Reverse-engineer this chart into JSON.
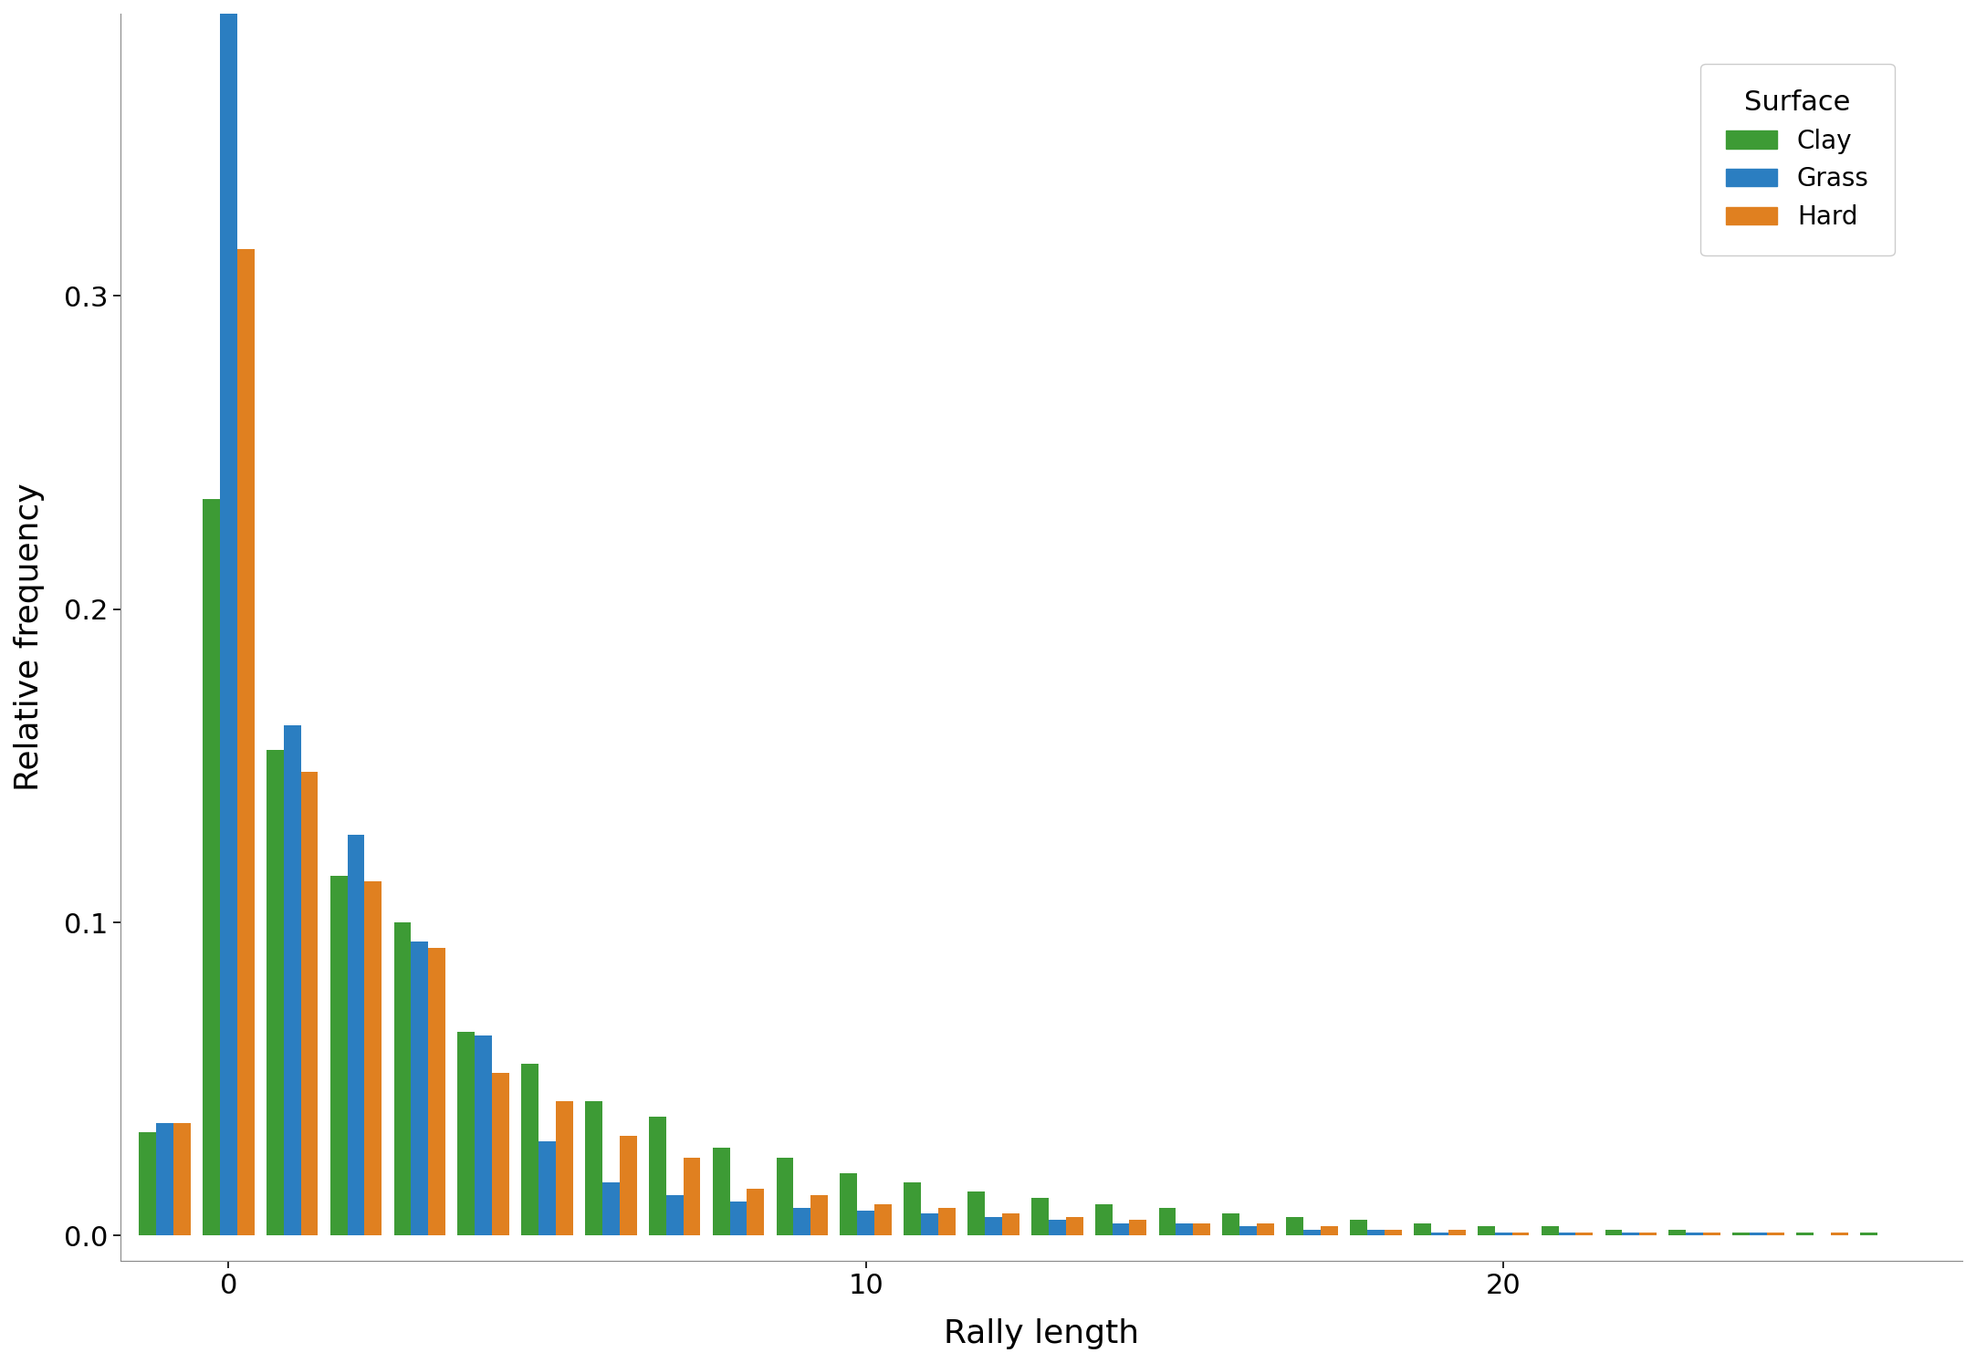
{
  "surfaces": [
    "Clay",
    "Grass",
    "Hard"
  ],
  "colors": {
    "Clay": "#3d9b35",
    "Grass": "#2b7ec1",
    "Hard": "#e08020"
  },
  "positions": [
    -1,
    0,
    1,
    2,
    3,
    4,
    5,
    6,
    7,
    8,
    9,
    10,
    11,
    12,
    13,
    14,
    15,
    16,
    17,
    18,
    19,
    20,
    21,
    22,
    23,
    24,
    25,
    26
  ],
  "clay": [
    0.033,
    0.235,
    0.155,
    0.115,
    0.1,
    0.065,
    0.055,
    0.043,
    0.038,
    0.028,
    0.025,
    0.02,
    0.017,
    0.014,
    0.012,
    0.01,
    0.009,
    0.007,
    0.006,
    0.005,
    0.004,
    0.003,
    0.003,
    0.002,
    0.002,
    0.001,
    0.001,
    0.001
  ],
  "grass": [
    0.036,
    0.42,
    0.163,
    0.128,
    0.094,
    0.064,
    0.03,
    0.017,
    0.013,
    0.011,
    0.009,
    0.008,
    0.007,
    0.006,
    0.005,
    0.004,
    0.004,
    0.003,
    0.002,
    0.002,
    0.001,
    0.001,
    0.001,
    0.001,
    0.001,
    0.001,
    0.0,
    0.0
  ],
  "hard": [
    0.036,
    0.315,
    0.148,
    0.113,
    0.092,
    0.052,
    0.043,
    0.032,
    0.025,
    0.015,
    0.013,
    0.01,
    0.009,
    0.007,
    0.006,
    0.005,
    0.004,
    0.004,
    0.003,
    0.002,
    0.002,
    0.001,
    0.001,
    0.001,
    0.001,
    0.001,
    0.001,
    0.0
  ],
  "xlabel": "Rally length",
  "ylabel": "Relative frequency",
  "legend_title": "Surface",
  "xticks": [
    0,
    10,
    20
  ],
  "yticks": [
    0.0,
    0.1,
    0.2,
    0.3
  ],
  "ylim": [
    -0.008,
    0.39
  ],
  "xlim": [
    -1.7,
    27.2
  ],
  "bar_width": 0.27,
  "background_color": "#ffffff"
}
